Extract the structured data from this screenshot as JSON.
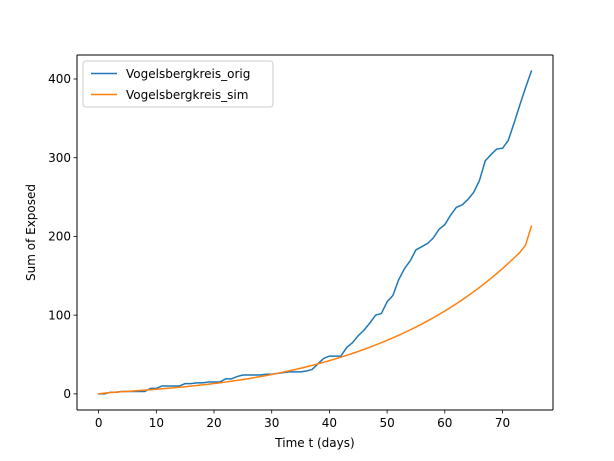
{
  "chart_data": {
    "type": "line",
    "title": "",
    "xlabel": "Time t (days)",
    "ylabel": "Sum of Exposed",
    "xlim": [
      -3.75,
      78.75
    ],
    "ylim": [
      -20.5,
      430.5
    ],
    "xticks": [
      0,
      10,
      20,
      30,
      40,
      50,
      60,
      70
    ],
    "yticks": [
      0,
      100,
      200,
      300,
      400
    ],
    "grid": false,
    "legend_position": "upper-left",
    "series": [
      {
        "name": "Vogelsbergkreis_orig",
        "color": "#1f77b4",
        "x": [
          0,
          1,
          2,
          3,
          4,
          5,
          6,
          7,
          8,
          9,
          10,
          11,
          12,
          13,
          14,
          15,
          16,
          17,
          18,
          19,
          20,
          21,
          22,
          23,
          24,
          25,
          26,
          27,
          28,
          29,
          30,
          31,
          32,
          33,
          34,
          35,
          36,
          37,
          38,
          39,
          40,
          41,
          42,
          43,
          44,
          45,
          46,
          47,
          48,
          49,
          50,
          51,
          52,
          53,
          54,
          55,
          56,
          57,
          58,
          59,
          60,
          61,
          62,
          63,
          64,
          65,
          66,
          67,
          68,
          69,
          70,
          71,
          72,
          73,
          74,
          75
        ],
        "y": [
          0,
          0,
          2,
          2,
          3,
          3,
          3,
          3,
          3,
          7,
          7,
          10,
          10,
          10,
          10,
          13,
          13,
          14,
          14,
          15,
          15,
          15,
          19,
          19,
          22,
          24,
          24,
          24,
          24,
          25,
          25,
          26,
          27,
          28,
          28,
          28,
          29,
          31,
          38,
          45,
          48,
          48,
          48,
          59,
          65,
          74,
          81,
          90,
          100,
          102,
          117,
          125,
          145,
          159,
          169,
          183,
          187,
          191,
          198,
          209,
          215,
          227,
          237,
          240,
          247,
          256,
          271,
          296,
          304,
          311,
          312,
          322,
          344,
          367,
          389,
          410
        ]
      },
      {
        "name": "Vogelsbergkreis_sim",
        "color": "#ff7f0e",
        "x": [
          0,
          1,
          2,
          3,
          4,
          5,
          6,
          7,
          8,
          9,
          10,
          11,
          12,
          13,
          14,
          15,
          16,
          17,
          18,
          19,
          20,
          21,
          22,
          23,
          24,
          25,
          26,
          27,
          28,
          29,
          30,
          31,
          32,
          33,
          34,
          35,
          36,
          37,
          38,
          39,
          40,
          41,
          42,
          43,
          44,
          45,
          46,
          47,
          48,
          49,
          50,
          51,
          52,
          53,
          54,
          55,
          56,
          57,
          58,
          59,
          60,
          61,
          62,
          63,
          64,
          65,
          66,
          67,
          68,
          69,
          70,
          71,
          72,
          73,
          74,
          75
        ],
        "y": [
          0,
          0.9,
          1.6,
          2.2,
          2.7,
          3.2,
          3.7,
          4.2,
          4.8,
          5.3,
          5.9,
          6.5,
          7.1,
          7.7,
          8.4,
          9.1,
          9.8,
          10.6,
          11.4,
          12.2,
          13.1,
          14,
          15,
          16,
          17.1,
          18.2,
          19.4,
          20.6,
          21.9,
          23.2,
          24.6,
          26.1,
          27.6,
          29.2,
          30.8,
          32.5,
          34.3,
          36.2,
          38.1,
          40.1,
          42.2,
          44.4,
          46.6,
          49,
          51.4,
          53.9,
          56.5,
          59.2,
          62.1,
          65,
          68,
          71.2,
          74.4,
          77.8,
          81.3,
          84.9,
          88.7,
          92.6,
          96.7,
          100.9,
          105.3,
          109.8,
          114.5,
          119.4,
          124.5,
          129.8,
          135.2,
          140.9,
          146.8,
          152.9,
          159.2,
          165.8,
          172.6,
          179.7,
          189,
          213
        ]
      }
    ]
  }
}
